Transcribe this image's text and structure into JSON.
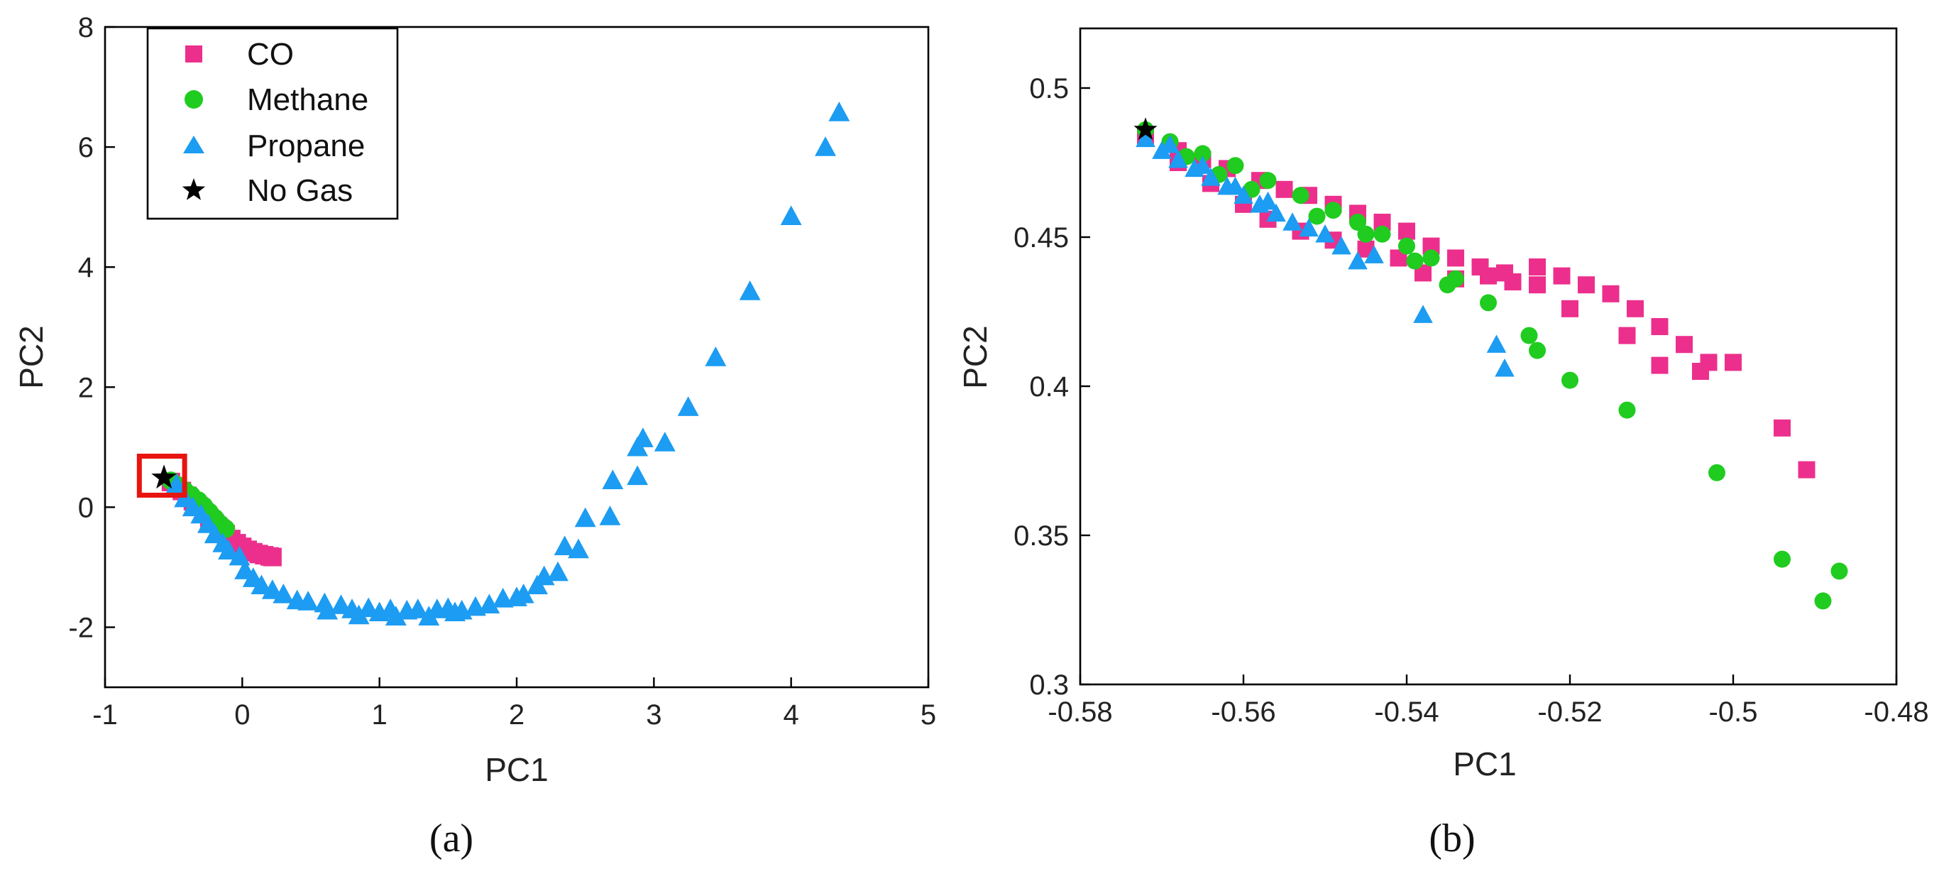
{
  "colors": {
    "CO": "#ec2f8c",
    "Methane": "#1fcc1f",
    "Propane": "#1c9cf2",
    "No Gas": "#000000",
    "highlight": "#e8140f"
  },
  "captions": [
    "(a)",
    "(b)"
  ],
  "chart_data": [
    {
      "type": "scatter",
      "panel": "(a)",
      "xlabel": "PC1",
      "ylabel": "PC2",
      "xlim": [
        -1,
        5
      ],
      "ylim": [
        -3,
        8
      ],
      "xticks": [
        -1,
        0,
        1,
        2,
        3,
        4,
        5
      ],
      "yticks": [
        -2,
        0,
        2,
        4,
        6,
        8
      ],
      "legend": {
        "placement": "top-left",
        "entries": [
          "CO",
          "Methane",
          "Propane",
          "No Gas"
        ]
      },
      "highlight_box": {
        "x": [
          -0.75,
          -0.42
        ],
        "y": [
          0.2,
          0.85
        ]
      },
      "series": [
        {
          "name": "CO",
          "marker": "square",
          "points": [
            [
              -0.52,
              0.42
            ],
            [
              -0.48,
              0.35
            ],
            [
              -0.44,
              0.27
            ],
            [
              -0.4,
              0.19
            ],
            [
              -0.36,
              0.1
            ],
            [
              -0.32,
              0.02
            ],
            [
              -0.28,
              -0.08
            ],
            [
              -0.24,
              -0.18
            ],
            [
              -0.2,
              -0.27
            ],
            [
              -0.16,
              -0.36
            ],
            [
              -0.12,
              -0.45
            ],
            [
              -0.08,
              -0.53
            ],
            [
              -0.04,
              -0.6
            ],
            [
              0.0,
              -0.66
            ],
            [
              0.04,
              -0.71
            ],
            [
              0.08,
              -0.75
            ],
            [
              0.12,
              -0.78
            ],
            [
              0.16,
              -0.8
            ],
            [
              0.2,
              -0.82
            ],
            [
              0.22,
              -0.83
            ]
          ]
        },
        {
          "name": "Methane",
          "marker": "circle",
          "points": [
            [
              -0.52,
              0.44
            ],
            [
              -0.47,
              0.36
            ],
            [
              -0.42,
              0.28
            ],
            [
              -0.37,
              0.2
            ],
            [
              -0.32,
              0.11
            ],
            [
              -0.28,
              0.02
            ],
            [
              -0.24,
              -0.08
            ],
            [
              -0.2,
              -0.18
            ],
            [
              -0.16,
              -0.28
            ],
            [
              -0.12,
              -0.36
            ]
          ]
        },
        {
          "name": "Propane",
          "marker": "triangle",
          "points": [
            [
              -0.48,
              0.38
            ],
            [
              -0.42,
              0.15
            ],
            [
              -0.36,
              0.0
            ],
            [
              -0.3,
              -0.12
            ],
            [
              -0.25,
              -0.28
            ],
            [
              -0.2,
              -0.45
            ],
            [
              -0.14,
              -0.6
            ],
            [
              -0.1,
              -0.72
            ],
            [
              -0.02,
              -0.82
            ],
            [
              0.02,
              -1.05
            ],
            [
              0.08,
              -1.18
            ],
            [
              0.14,
              -1.3
            ],
            [
              0.22,
              -1.38
            ],
            [
              0.3,
              -1.45
            ],
            [
              0.4,
              -1.55
            ],
            [
              0.48,
              -1.57
            ],
            [
              0.6,
              -1.6
            ],
            [
              0.62,
              -1.72
            ],
            [
              0.72,
              -1.63
            ],
            [
              0.8,
              -1.7
            ],
            [
              0.85,
              -1.8
            ],
            [
              0.92,
              -1.68
            ],
            [
              1.0,
              -1.75
            ],
            [
              1.08,
              -1.7
            ],
            [
              1.12,
              -1.82
            ],
            [
              1.2,
              -1.72
            ],
            [
              1.28,
              -1.7
            ],
            [
              1.36,
              -1.82
            ],
            [
              1.42,
              -1.7
            ],
            [
              1.5,
              -1.68
            ],
            [
              1.55,
              -1.75
            ],
            [
              1.6,
              -1.72
            ],
            [
              1.7,
              -1.66
            ],
            [
              1.8,
              -1.62
            ],
            [
              1.9,
              -1.52
            ],
            [
              2.0,
              -1.5
            ],
            [
              2.05,
              -1.45
            ],
            [
              2.15,
              -1.3
            ],
            [
              2.2,
              -1.15
            ],
            [
              2.3,
              -1.08
            ],
            [
              2.35,
              -0.65
            ],
            [
              2.45,
              -0.7
            ],
            [
              2.5,
              -0.18
            ],
            [
              2.68,
              -0.15
            ],
            [
              2.7,
              0.45
            ],
            [
              2.88,
              0.52
            ],
            [
              2.88,
              1.0
            ],
            [
              2.92,
              1.15
            ],
            [
              3.08,
              1.08
            ],
            [
              3.25,
              1.67
            ],
            [
              3.45,
              2.5
            ],
            [
              3.7,
              3.6
            ],
            [
              4.0,
              4.85
            ],
            [
              4.25,
              6.0
            ],
            [
              4.35,
              6.58
            ]
          ]
        },
        {
          "name": "No Gas",
          "marker": "star",
          "points": [
            [
              -0.57,
              0.49
            ]
          ]
        }
      ]
    },
    {
      "type": "scatter",
      "panel": "(b)",
      "xlabel": "PC1",
      "ylabel": "PC2",
      "xlim": [
        -0.58,
        -0.48
      ],
      "ylim": [
        0.3,
        0.52
      ],
      "xticks": [
        -0.58,
        -0.56,
        -0.54,
        -0.52,
        -0.5,
        -0.48
      ],
      "yticks": [
        0.3,
        0.35,
        0.4,
        0.45,
        0.5
      ],
      "series": [
        {
          "name": "CO",
          "marker": "square",
          "points": [
            [
              -0.572,
              0.484
            ],
            [
              -0.568,
              0.479
            ],
            [
              -0.565,
              0.476
            ],
            [
              -0.562,
              0.473
            ],
            [
              -0.558,
              0.469
            ],
            [
              -0.555,
              0.466
            ],
            [
              -0.552,
              0.464
            ],
            [
              -0.549,
              0.461
            ],
            [
              -0.546,
              0.458
            ],
            [
              -0.543,
              0.455
            ],
            [
              -0.54,
              0.452
            ],
            [
              -0.537,
              0.447
            ],
            [
              -0.534,
              0.443
            ],
            [
              -0.531,
              0.44
            ],
            [
              -0.528,
              0.438
            ],
            [
              -0.524,
              0.44
            ],
            [
              -0.521,
              0.437
            ],
            [
              -0.518,
              0.434
            ],
            [
              -0.515,
              0.431
            ],
            [
              -0.512,
              0.426
            ],
            [
              -0.509,
              0.42
            ],
            [
              -0.506,
              0.414
            ],
            [
              -0.503,
              0.408
            ],
            [
              -0.5,
              0.408
            ],
            [
              -0.494,
              0.386
            ],
            [
              -0.491,
              0.372
            ],
            [
              -0.568,
              0.475
            ],
            [
              -0.564,
              0.468
            ],
            [
              -0.56,
              0.461
            ],
            [
              -0.557,
              0.456
            ],
            [
              -0.553,
              0.452
            ],
            [
              -0.549,
              0.449
            ],
            [
              -0.545,
              0.446
            ],
            [
              -0.541,
              0.443
            ],
            [
              -0.538,
              0.438
            ],
            [
              -0.534,
              0.436
            ],
            [
              -0.53,
              0.437
            ],
            [
              -0.527,
              0.435
            ],
            [
              -0.524,
              0.434
            ],
            [
              -0.52,
              0.426
            ],
            [
              -0.513,
              0.417
            ],
            [
              -0.509,
              0.407
            ],
            [
              -0.504,
              0.405
            ]
          ]
        },
        {
          "name": "Methane",
          "marker": "circle",
          "points": [
            [
              -0.572,
              0.486
            ],
            [
              -0.569,
              0.482
            ],
            [
              -0.565,
              0.478
            ],
            [
              -0.561,
              0.474
            ],
            [
              -0.557,
              0.469
            ],
            [
              -0.553,
              0.464
            ],
            [
              -0.549,
              0.459
            ],
            [
              -0.546,
              0.455
            ],
            [
              -0.543,
              0.451
            ],
            [
              -0.54,
              0.447
            ],
            [
              -0.537,
              0.443
            ],
            [
              -0.534,
              0.436
            ],
            [
              -0.53,
              0.428
            ],
            [
              -0.525,
              0.417
            ],
            [
              -0.524,
              0.412
            ],
            [
              -0.52,
              0.402
            ],
            [
              -0.513,
              0.392
            ],
            [
              -0.502,
              0.371
            ],
            [
              -0.494,
              0.342
            ],
            [
              -0.489,
              0.328
            ],
            [
              -0.487,
              0.338
            ],
            [
              -0.567,
              0.477
            ],
            [
              -0.563,
              0.471
            ],
            [
              -0.559,
              0.466
            ],
            [
              -0.551,
              0.457
            ],
            [
              -0.545,
              0.451
            ],
            [
              -0.539,
              0.442
            ],
            [
              -0.535,
              0.434
            ]
          ]
        },
        {
          "name": "Propane",
          "marker": "triangle",
          "points": [
            [
              -0.572,
              0.483
            ],
            [
              -0.57,
              0.479
            ],
            [
              -0.568,
              0.476
            ],
            [
              -0.566,
              0.473
            ],
            [
              -0.564,
              0.47
            ],
            [
              -0.562,
              0.467
            ],
            [
              -0.56,
              0.464
            ],
            [
              -0.558,
              0.461
            ],
            [
              -0.556,
              0.458
            ],
            [
              -0.554,
              0.455
            ],
            [
              -0.552,
              0.453
            ],
            [
              -0.55,
              0.451
            ],
            [
              -0.548,
              0.447
            ],
            [
              -0.546,
              0.442
            ],
            [
              -0.544,
              0.444
            ],
            [
              -0.538,
              0.424
            ],
            [
              -0.529,
              0.414
            ],
            [
              -0.528,
              0.406
            ],
            [
              -0.569,
              0.481
            ],
            [
              -0.565,
              0.474
            ],
            [
              -0.561,
              0.467
            ],
            [
              -0.557,
              0.462
            ]
          ]
        },
        {
          "name": "No Gas",
          "marker": "star",
          "points": [
            [
              -0.572,
              0.486
            ]
          ]
        }
      ]
    }
  ]
}
